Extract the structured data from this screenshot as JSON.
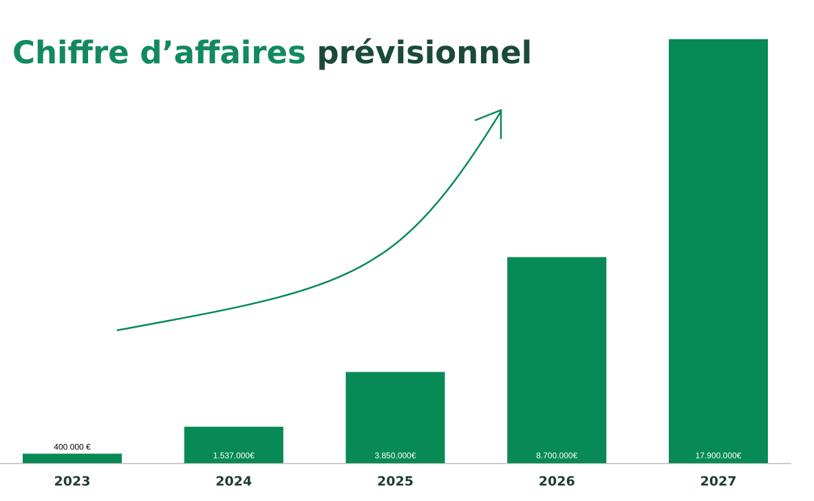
{
  "chart_data": {
    "type": "bar",
    "title": [
      "Chiffre d’affaires",
      "prévisionnel"
    ],
    "title_colors": [
      "#138a5e",
      "#1b4a3b"
    ],
    "categories": [
      "2023",
      "2024",
      "2025",
      "2026",
      "2027"
    ],
    "values": [
      400000,
      1537000,
      3850000,
      8700000,
      17900000
    ],
    "value_labels": [
      "400 000 €",
      "1.537.000€",
      "3.850.000€",
      "8.700.000€",
      "17.900.000€"
    ],
    "color": "#078a55"
  }
}
